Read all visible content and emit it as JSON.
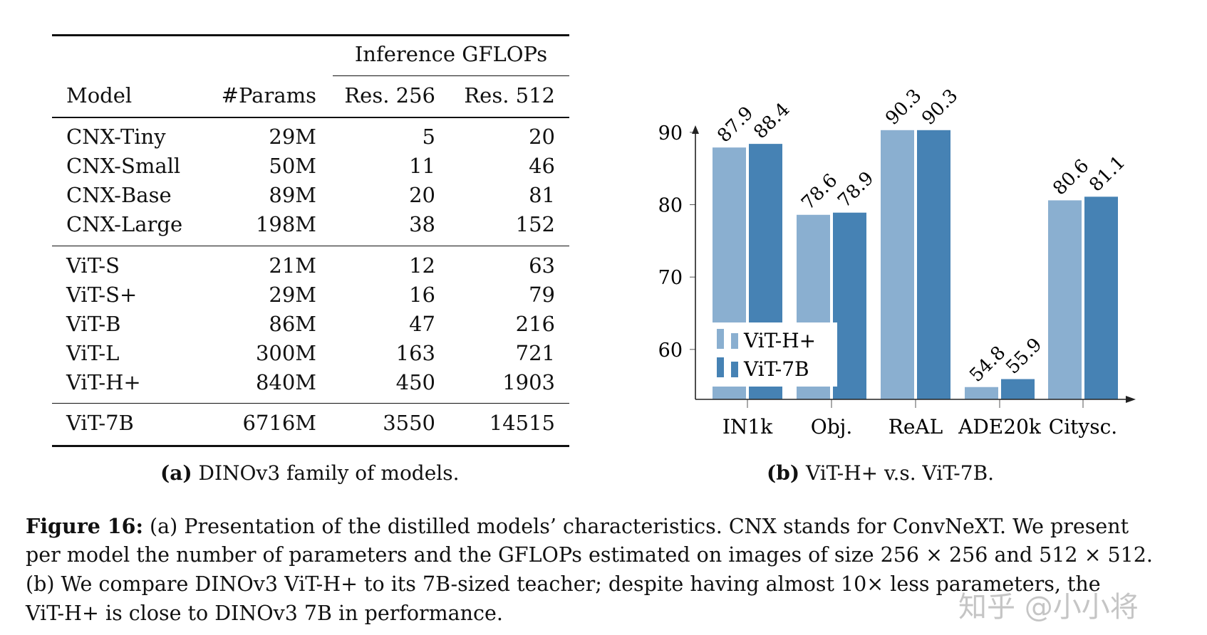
{
  "table": {
    "group_header": "Inference GFLOPs",
    "columns": [
      "Model",
      "#Params",
      "Res. 256",
      "Res. 512"
    ],
    "groups": [
      [
        [
          "CNX-Tiny",
          "29M",
          "5",
          "20"
        ],
        [
          "CNX-Small",
          "50M",
          "11",
          "46"
        ],
        [
          "CNX-Base",
          "89M",
          "20",
          "81"
        ],
        [
          "CNX-Large",
          "198M",
          "38",
          "152"
        ]
      ],
      [
        [
          "ViT-S",
          "21M",
          "12",
          "63"
        ],
        [
          "ViT-S+",
          "29M",
          "16",
          "79"
        ],
        [
          "ViT-B",
          "86M",
          "47",
          "216"
        ],
        [
          "ViT-L",
          "300M",
          "163",
          "721"
        ],
        [
          "ViT-H+",
          "840M",
          "450",
          "1903"
        ]
      ],
      [
        [
          "ViT-7B",
          "6716M",
          "3550",
          "14515"
        ]
      ]
    ],
    "caption_label": "(a)",
    "caption_text": "DINOv3 family of models."
  },
  "chart_data": {
    "type": "bar",
    "categories": [
      "IN1k",
      "Obj.",
      "ReAL",
      "ADE20k",
      "Citysc."
    ],
    "series": [
      {
        "name": "ViT-H+",
        "values": [
          87.9,
          78.6,
          90.3,
          54.8,
          80.6
        ],
        "color": "#8aafd0"
      },
      {
        "name": "ViT-7B",
        "values": [
          88.4,
          78.9,
          90.3,
          55.9,
          81.1
        ],
        "color": "#4682b4"
      }
    ],
    "yticks": [
      60,
      70,
      80,
      90
    ],
    "ylim": [
      53.1,
      92
    ],
    "legend": "bottom-left",
    "grid": false,
    "caption_label": "(b)",
    "caption_text": "ViT-H+ v.s. ViT-7B."
  },
  "figure_caption": {
    "label": "Figure 16:",
    "lines": [
      "(a) Presentation of the distilled models’ characteristics. CNX stands for ConvNeXT. We present",
      "per model the number of parameters and the GFLOPs estimated on images of size 256 × 256 and 512 × 512.",
      "(b) We compare DINOv3 ViT-H+ to its 7B-sized teacher; despite having almost 10× less parameters, the",
      "ViT-H+ is close to DINOv3 7B in performance."
    ]
  },
  "watermark": "知乎 @小小将"
}
